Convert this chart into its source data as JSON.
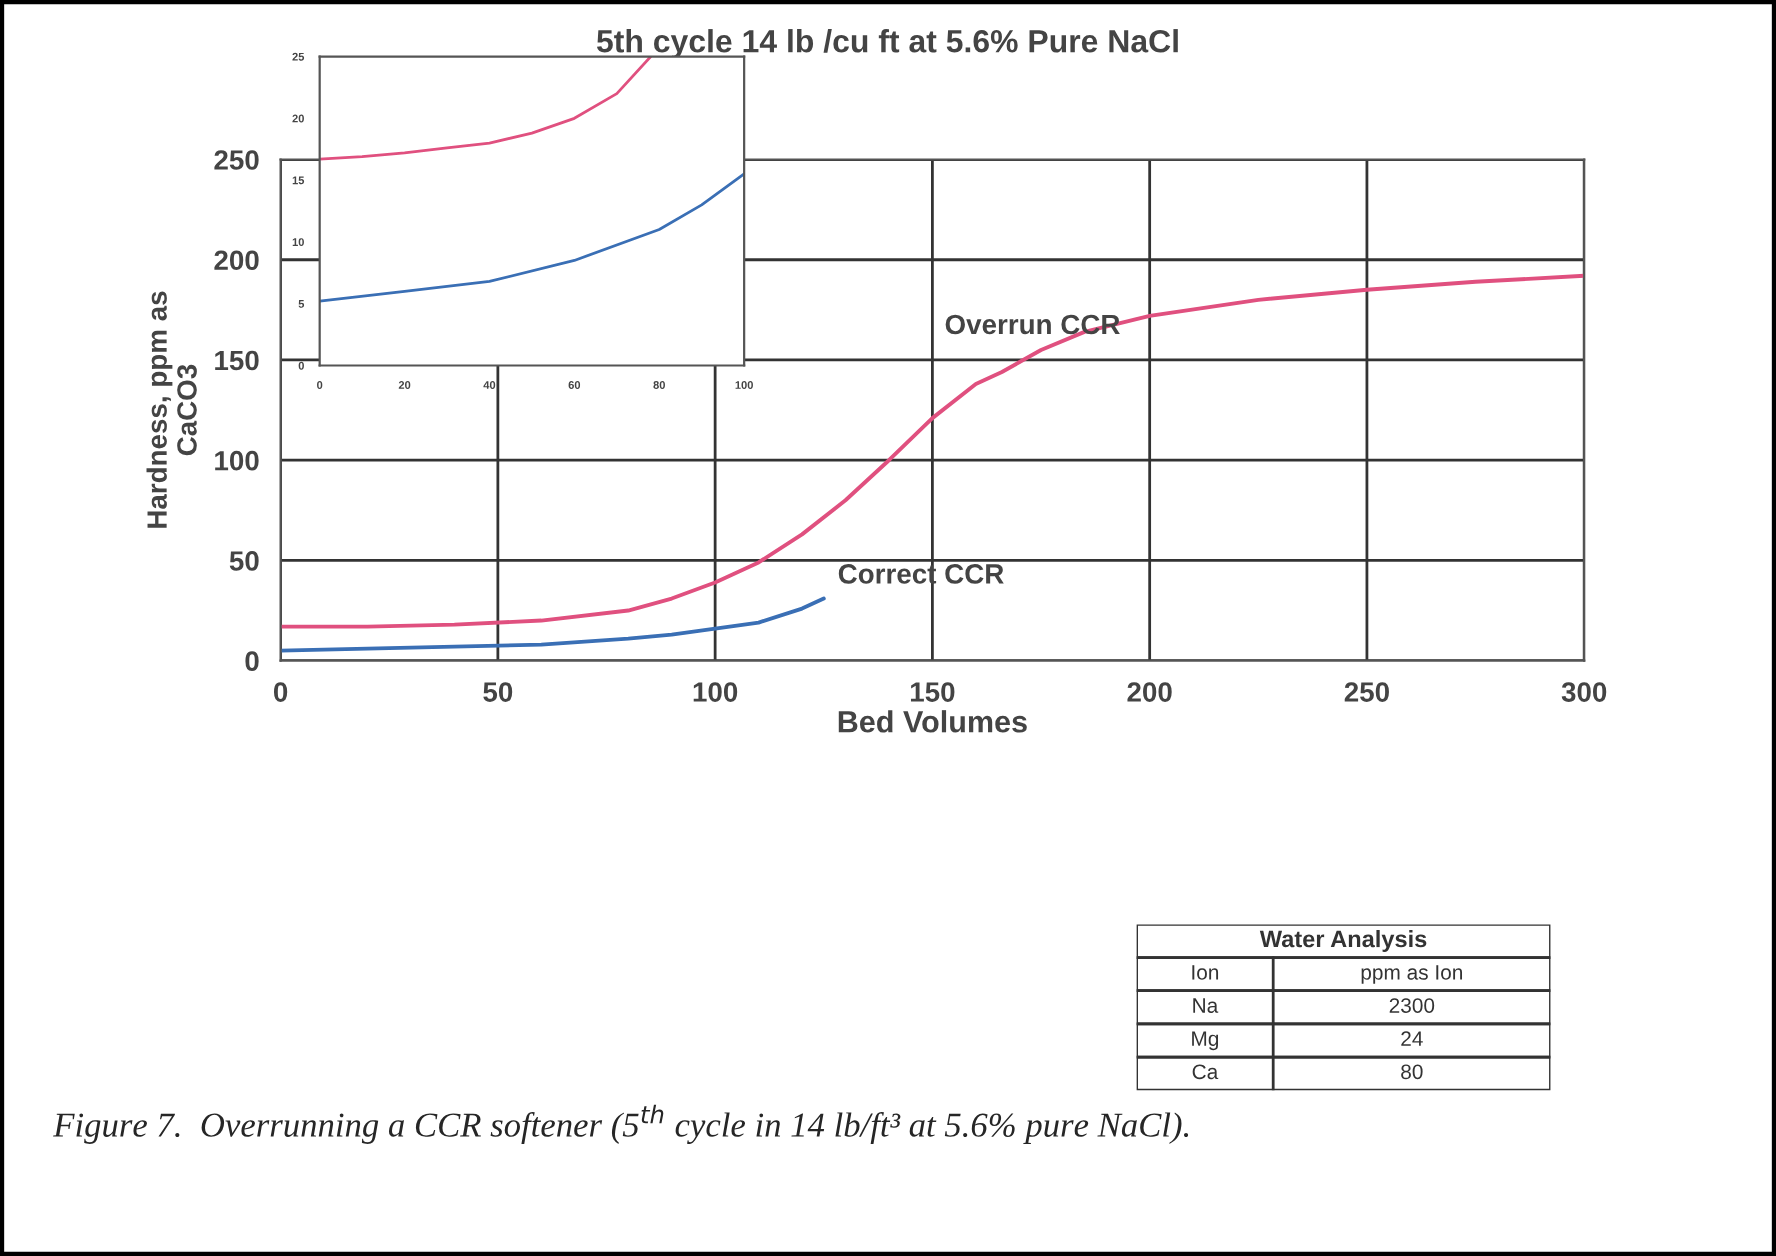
{
  "chart_data": [
    {
      "type": "line",
      "title": "5th cycle 14 lb /cu ft at 5.6% Pure NaCl",
      "xlabel": "Bed Volumes",
      "ylabel": "Hardness, ppm as CaCO3",
      "xlim": [
        0,
        300
      ],
      "ylim": [
        0,
        250
      ],
      "xticks": [
        0,
        50,
        100,
        150,
        200,
        250,
        300
      ],
      "yticks": [
        0,
        50,
        100,
        150,
        200,
        250
      ],
      "grid": true,
      "marker": "none",
      "line_style": "solid",
      "series": [
        {
          "name": "Overrun CCR",
          "color": "#e0507f",
          "x": [
            0,
            20,
            40,
            60,
            80,
            90,
            100,
            110,
            120,
            130,
            140,
            150,
            160,
            166,
            175,
            185,
            200,
            225,
            250,
            275,
            300
          ],
          "values": [
            17,
            17,
            18,
            20,
            25,
            31,
            39,
            49,
            63,
            80,
            100,
            121,
            138,
            144,
            155,
            164,
            172,
            180,
            185,
            189,
            192
          ]
        },
        {
          "name": "Correct CCR",
          "color": "#3a6fb5",
          "x": [
            0,
            20,
            40,
            60,
            80,
            90,
            100,
            110,
            120,
            125
          ],
          "values": [
            5,
            6,
            7,
            8,
            11,
            13,
            16,
            19,
            26,
            31
          ]
        }
      ],
      "annotations": [
        "Figure 7.  Overrunning a CCR softener (5$^{th}$ cycle in 14 lb/ft³ at 5.6% pure NaCl)."
      ]
    },
    {
      "type": "line",
      "xlim": [
        0,
        100
      ],
      "ylim": [
        0,
        25
      ],
      "xticks": [
        0,
        20,
        40,
        60,
        80,
        100
      ],
      "yticks": [
        0,
        5,
        10,
        15,
        20,
        25
      ],
      "marker": "none",
      "line_style": "solid",
      "series": [
        {
          "color": "#e0507f",
          "x": [
            0,
            10,
            20,
            30,
            40,
            50,
            60,
            70,
            78
          ],
          "values": [
            16.7,
            16.9,
            17.2,
            17.6,
            18,
            18.8,
            20,
            22,
            25
          ]
        },
        {
          "color": "#3a6fb5",
          "x": [
            0,
            20,
            40,
            60,
            80,
            90,
            100
          ],
          "values": [
            5.2,
            6,
            6.8,
            8.5,
            11,
            13,
            15.5
          ]
        }
      ]
    },
    {
      "type": "other",
      "title": "Water Analysis",
      "annotations": [
        "Ion",
        "ppm as Ion",
        "Na",
        "2300",
        "Mg",
        "24",
        "Ca",
        "80"
      ]
    }
  ]
}
